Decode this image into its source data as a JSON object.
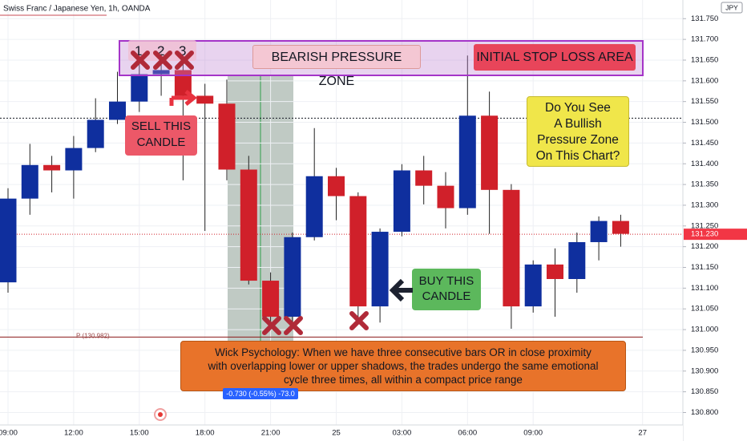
{
  "chart_data": {
    "type": "candlestick",
    "title": "Swiss Franc / Japanese Yen, 1h, OANDA",
    "currency": "JPY",
    "categories": [
      "09:00",
      null,
      null,
      "12:00",
      null,
      null,
      "15:00",
      null,
      null,
      "18:00",
      null,
      null,
      "21:00",
      null,
      null,
      "25",
      null,
      null,
      "03:00",
      null,
      null,
      "06:00",
      null,
      null,
      "09:00",
      null,
      null,
      null,
      null,
      "27"
    ],
    "open": [
      131.114,
      131.316,
      131.397,
      131.384,
      131.438,
      131.506,
      131.55,
      131.616,
      131.626,
      131.564,
      131.545,
      131.386,
      131.118,
      131.031,
      131.223,
      131.37,
      131.322,
      131.056,
      131.236,
      131.384,
      131.347,
      131.293,
      131.516,
      131.337,
      131.056,
      131.157,
      131.122,
      131.211,
      131.262,
      null
    ],
    "high": [
      131.341,
      131.448,
      131.419,
      131.467,
      131.558,
      131.622,
      131.641,
      131.68,
      131.641,
      131.593,
      131.603,
      131.419,
      131.138,
      131.234,
      131.486,
      131.39,
      131.331,
      131.244,
      131.399,
      131.419,
      131.38,
      131.661,
      131.574,
      131.351,
      131.167,
      131.196,
      131.234,
      131.273,
      131.277,
      null
    ],
    "low": [
      131.089,
      131.277,
      131.331,
      131.316,
      131.428,
      131.496,
      131.525,
      131.564,
      131.36,
      131.238,
      131.36,
      131.109,
      131.002,
      131.002,
      131.215,
      131.264,
      131.031,
      131.017,
      131.225,
      131.302,
      131.244,
      131.277,
      131.231,
      131.002,
      131.041,
      131.031,
      131.089,
      131.167,
      131.2,
      null
    ],
    "close": [
      131.316,
      131.397,
      131.384,
      131.438,
      131.506,
      131.55,
      131.616,
      131.626,
      131.564,
      131.545,
      131.386,
      131.118,
      131.031,
      131.223,
      131.37,
      131.322,
      131.056,
      131.236,
      131.384,
      131.347,
      131.293,
      131.516,
      131.337,
      131.056,
      131.157,
      131.122,
      131.211,
      131.262,
      131.231,
      null
    ],
    "up_color": "#0f2f9e",
    "down_color": "#d0202a",
    "ylim": [
      130.77,
      131.795
    ],
    "yticks": [
      {
        "value": 130.8,
        "label": "130.800"
      },
      {
        "value": 130.85,
        "label": "130.850"
      },
      {
        "value": 130.9,
        "label": "130.900"
      },
      {
        "value": 130.95,
        "label": "130.950"
      },
      {
        "value": 131.0,
        "label": "131.000"
      },
      {
        "value": 131.05,
        "label": "131.050"
      },
      {
        "value": 131.1,
        "label": "131.100"
      },
      {
        "value": 131.15,
        "label": "131.150"
      },
      {
        "value": 131.2,
        "label": "131.200"
      },
      {
        "value": 131.25,
        "label": "131.250"
      },
      {
        "value": 131.3,
        "label": "131.300"
      },
      {
        "value": 131.35,
        "label": "131.350"
      },
      {
        "value": 131.4,
        "label": "131.400"
      },
      {
        "value": 131.45,
        "label": "131.450"
      },
      {
        "value": 131.5,
        "label": "131.500"
      },
      {
        "value": 131.55,
        "label": "131.550"
      },
      {
        "value": 131.6,
        "label": "131.600"
      },
      {
        "value": 131.65,
        "label": "131.650"
      },
      {
        "value": 131.7,
        "label": "131.700"
      },
      {
        "value": 131.75,
        "label": "131.750"
      }
    ],
    "grid": true,
    "last_price": {
      "value": 131.23,
      "label": "131.230"
    },
    "pivot": {
      "value": 130.982,
      "label": "P (130.982)"
    },
    "hline": 131.51,
    "annotations": [
      "1",
      "2",
      "3",
      "BEARISH PRESSURE ZONE",
      "INITIAL STOP LOSS AREA",
      "SELL THIS\nCANDLE",
      "Do You See\n A Bullish\nPressure Zone\nOn This Chart?",
      "BUY THIS\nCANDLE",
      "Wick Psychology: When we have three consecutive bars  OR in close proximity\nwith overlapping lower or upper shadows, the trades undergo the same emotional\ncycle three times, all within a compact price range",
      "-0.730 (-0.55%) -73.0"
    ]
  }
}
